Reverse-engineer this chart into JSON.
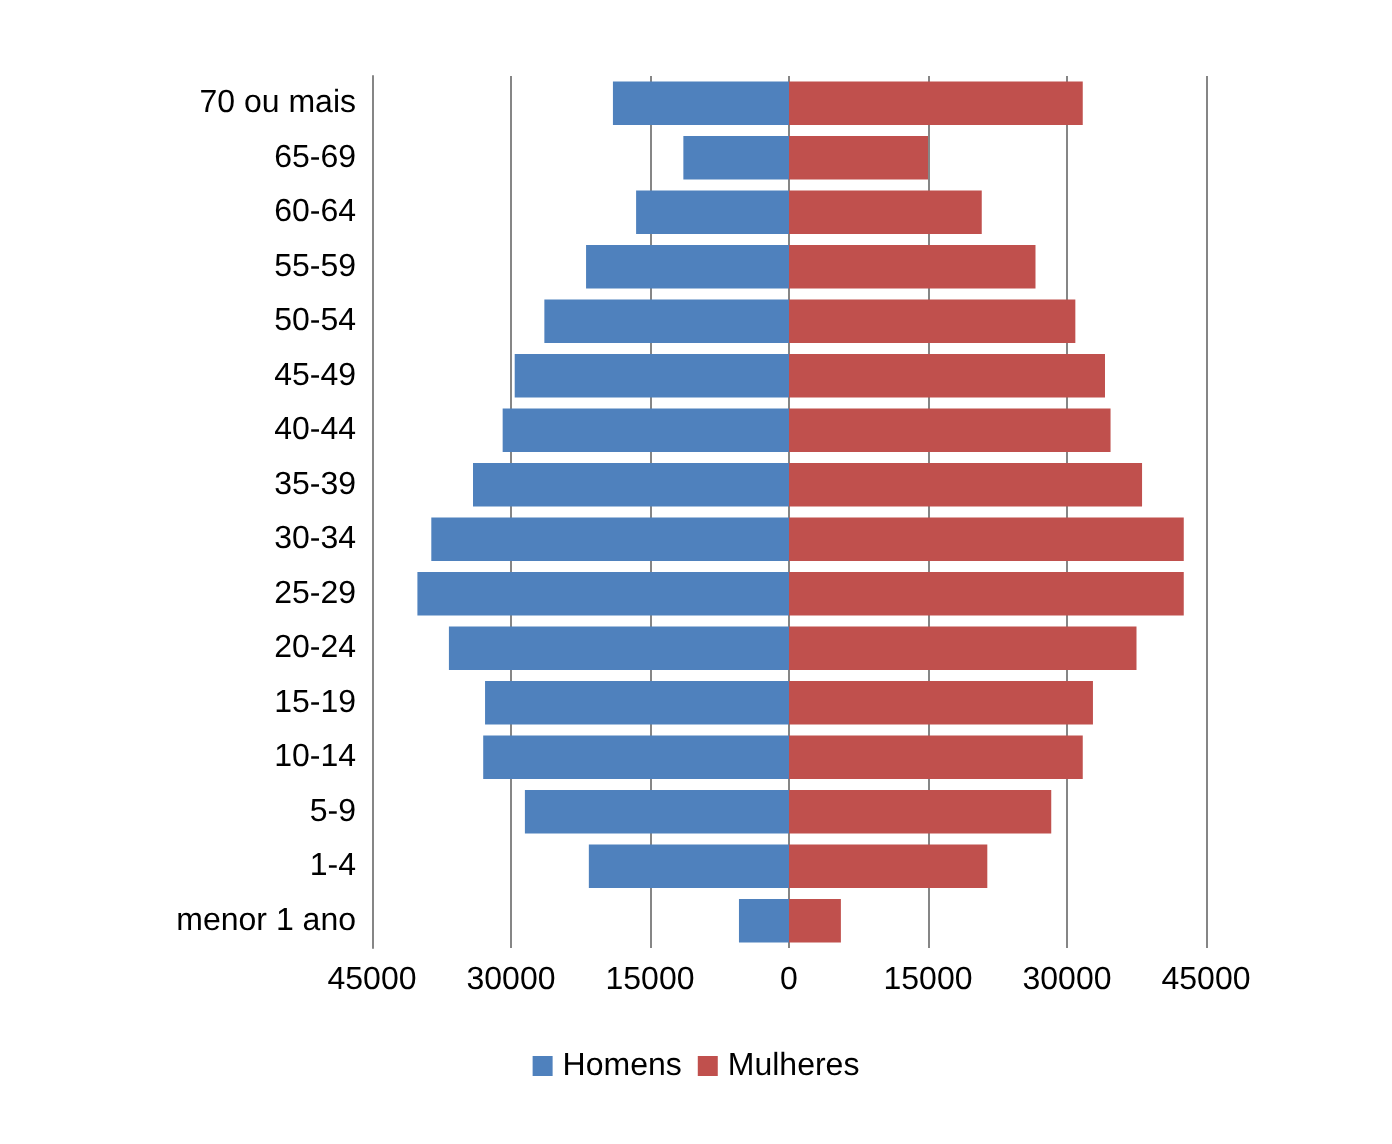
{
  "chart_data": {
    "type": "bar",
    "orientation": "horizontal",
    "stacked": true,
    "categories": [
      "70 ou mais",
      "65-69",
      "60-64",
      "55-59",
      "50-54",
      "45-49",
      "40-44",
      "35-39",
      "30-34",
      "25-29",
      "20-24",
      "15-19",
      "10-14",
      "5-9",
      "1-4",
      "menor 1 ano"
    ],
    "series": [
      {
        "name": "Homens",
        "color": "#4f81bd",
        "values": [
          -19000,
          -11400,
          -16500,
          -21900,
          -26400,
          -29600,
          -30900,
          -34100,
          -38600,
          -40100,
          -36700,
          -32800,
          -33000,
          -28500,
          -21600,
          -5400
        ]
      },
      {
        "name": "Mulheres",
        "color": "#c0504d",
        "values": [
          31700,
          15000,
          20800,
          26600,
          30900,
          34100,
          34700,
          38100,
          42600,
          42600,
          37500,
          32800,
          31700,
          28300,
          21400,
          5600
        ]
      }
    ],
    "xlim": [
      -45000,
      45000
    ],
    "xticks": [
      {
        "value": -45000,
        "label": "45000"
      },
      {
        "value": -30000,
        "label": "30000"
      },
      {
        "value": -15000,
        "label": "15000"
      },
      0,
      15000,
      30000,
      45000
    ],
    "grid": "x",
    "legend": "bottom"
  }
}
